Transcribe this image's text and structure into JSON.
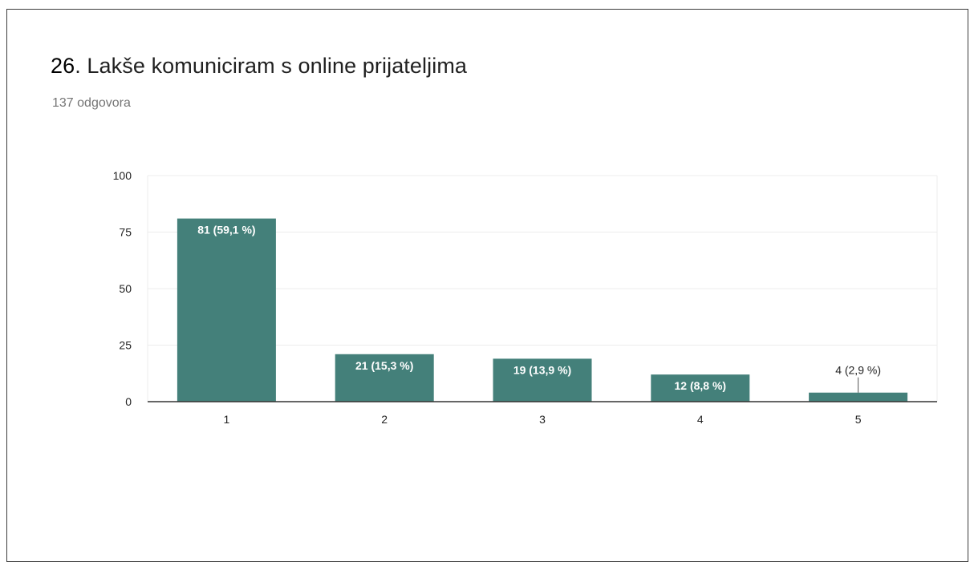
{
  "question": {
    "number": "26",
    "text": ". Lakše komuniciram s online prijateljima",
    "responses": "137 odgovora"
  },
  "colors": {
    "bar": "#44807a",
    "grid": "#ececec",
    "axis": "#333333",
    "tick_text": "#222222",
    "bar_label_inside": "#ffffff",
    "bar_label_outside": "#222222"
  },
  "chart_data": {
    "type": "bar",
    "categories": [
      "1",
      "2",
      "3",
      "4",
      "5"
    ],
    "values": [
      81,
      21,
      19,
      12,
      4
    ],
    "labels": [
      "81 (59,1 %)",
      "21 (15,3 %)",
      "19 (13,9 %)",
      "12 (8,8 %)",
      "4 (2,9 %)"
    ],
    "title": "26. Lakše komuniciram s online prijateljima",
    "subtitle": "137 odgovora",
    "xlabel": "",
    "ylabel": "",
    "ylim": [
      0,
      100
    ],
    "yticks": [
      0,
      25,
      50,
      75,
      100
    ],
    "grid": true
  }
}
